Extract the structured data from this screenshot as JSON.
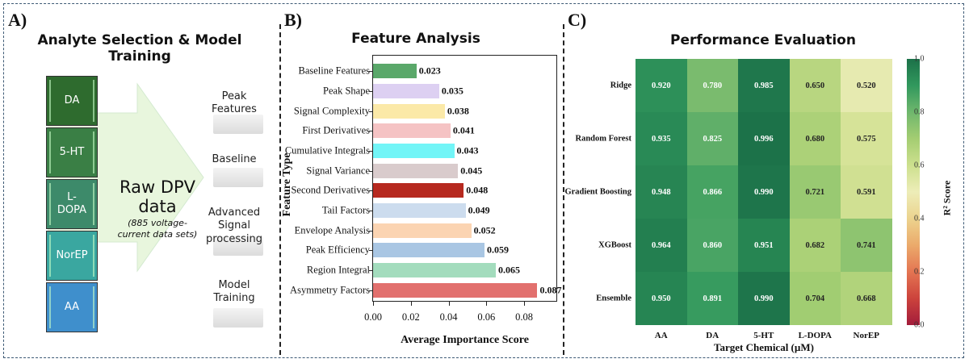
{
  "panel_a": {
    "label": "A)",
    "title": "Analyte Selection & Model Training",
    "analytes": [
      {
        "name": "DA",
        "color": "#2e6b2e"
      },
      {
        "name": "5-HT",
        "color": "#3a7f45"
      },
      {
        "name": "L-\nDOPA",
        "color": "#3d8a6a"
      },
      {
        "name": "NorEP",
        "color": "#3aa7a0"
      },
      {
        "name": "AA",
        "color": "#3f8fcc"
      }
    ],
    "arrow": {
      "line1": "Raw DPV",
      "line2": "data",
      "note1": "(885 voltage-",
      "note2": "current data sets)",
      "color": "#e8f6dd"
    },
    "steps": [
      {
        "line1": "Peak",
        "line2": "Features"
      },
      {
        "line1": "Baseline",
        "line2": ""
      },
      {
        "line1": "Advanced",
        "line2": "Signal",
        "line3": "processing"
      },
      {
        "line1": "Model",
        "line2": "Training"
      }
    ]
  },
  "panel_b": {
    "label": "B)",
    "title": "Feature Analysis"
  },
  "panel_c": {
    "label": "C)",
    "title": "Performance Evaluation"
  },
  "chart_data": [
    {
      "type": "bar",
      "orientation": "horizontal",
      "title": "Feature Analysis",
      "xlabel": "Average Importance Score",
      "ylabel": "Feature Type",
      "xlim": [
        0,
        0.0975
      ],
      "xticks": [
        "0.00",
        "0.02",
        "0.04",
        "0.06",
        "0.08"
      ],
      "xtick_values": [
        0,
        0.02,
        0.04,
        0.06,
        0.08
      ],
      "categories": [
        "Baseline Features",
        "Peak Shape",
        "Signal Complexity",
        "First Derivatives",
        "Cumulative Integrals",
        "Signal Variance",
        "Second Derivatives",
        "Tail Factors",
        "Envelope Analysis",
        "Peak Efficiency",
        "Region Integral",
        "Asymmetry Factors"
      ],
      "values": [
        0.023,
        0.035,
        0.038,
        0.041,
        0.043,
        0.045,
        0.048,
        0.049,
        0.052,
        0.059,
        0.065,
        0.087
      ],
      "value_labels": [
        "0.023",
        "0.035",
        "0.038",
        "0.041",
        "0.043",
        "0.045",
        "0.048",
        "0.049",
        "0.052",
        "0.059",
        "0.065",
        "0.087"
      ],
      "colors": [
        "#5aa86a",
        "#ddd0f2",
        "#fbe9a8",
        "#f5c3c4",
        "#72f5f7",
        "#d9cbcc",
        "#b6291f",
        "#ccdcee",
        "#fbd4b2",
        "#a9c6e3",
        "#a3dcbd",
        "#e2706e"
      ],
      "grid": false,
      "legend": "none"
    },
    {
      "type": "heatmap",
      "title": "Performance Evaluation",
      "xlabel": "Target Chemical (µM)",
      "ylabel": "",
      "x": [
        "AA",
        "DA",
        "5-HT",
        "L-DOPA",
        "NorEP"
      ],
      "y": [
        "Ridge",
        "Random Forest",
        "Gradient Boosting",
        "XGBoost",
        "Ensemble"
      ],
      "values": [
        [
          0.92,
          0.78,
          0.985,
          0.65,
          0.52
        ],
        [
          0.935,
          0.825,
          0.996,
          0.68,
          0.575
        ],
        [
          0.948,
          0.866,
          0.99,
          0.721,
          0.591
        ],
        [
          0.964,
          0.86,
          0.951,
          0.682,
          0.741
        ],
        [
          0.95,
          0.891,
          0.99,
          0.704,
          0.668
        ]
      ],
      "value_labels": [
        [
          "0.920",
          "0.780",
          "0.985",
          "0.650",
          "0.520"
        ],
        [
          "0.935",
          "0.825",
          "0.996",
          "0.680",
          "0.575"
        ],
        [
          "0.948",
          "0.866",
          "0.990",
          "0.721",
          "0.591"
        ],
        [
          "0.964",
          "0.860",
          "0.951",
          "0.682",
          "0.741"
        ],
        [
          "0.950",
          "0.891",
          "0.990",
          "0.704",
          "0.668"
        ]
      ],
      "colormap": "RdYlGn",
      "vmin": 0.0,
      "vmax": 1.0,
      "colorbar_label": "R² Score",
      "colorbar_ticks": [
        "0.0",
        "0.2",
        "0.4",
        "0.6",
        "0.8",
        "1.0"
      ],
      "colorbar_tick_values": [
        0.0,
        0.2,
        0.4,
        0.6,
        0.8,
        1.0
      ],
      "legend": "colorbar-right"
    }
  ]
}
